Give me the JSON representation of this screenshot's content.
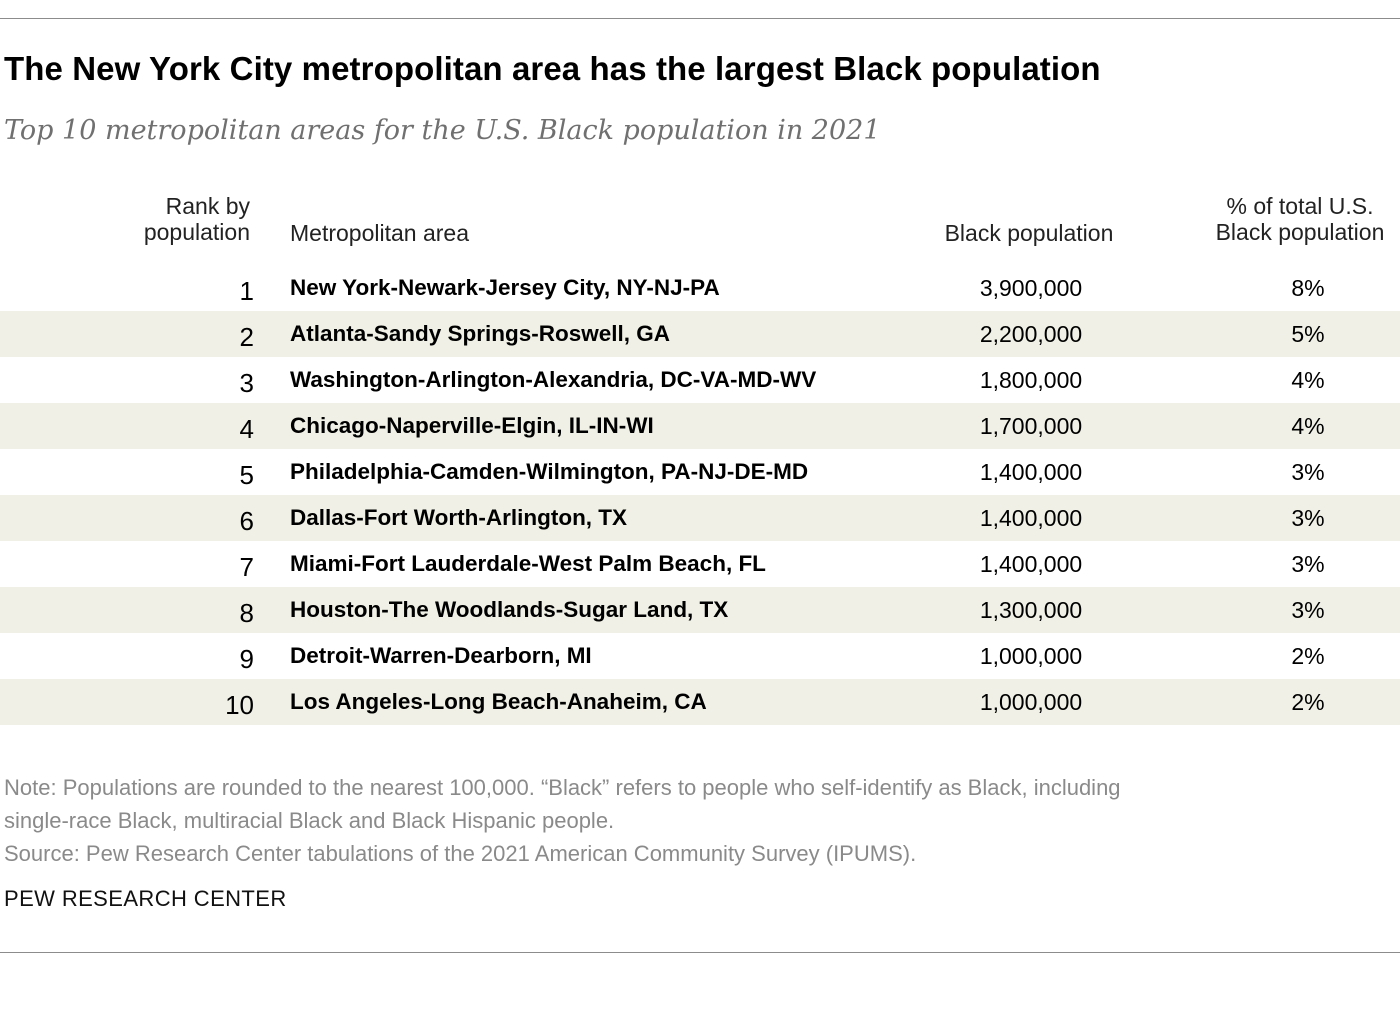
{
  "chart_data": {
    "type": "table",
    "title": "The New York City metropolitan area has the largest Black population",
    "subtitle": "Top 10 metropolitan areas for the U.S. Black population in 2021",
    "columns": {
      "rank_line1": "Rank by",
      "rank_line2": "population",
      "metro": "Metropolitan area",
      "pop": "Black population",
      "pct_line1": "% of total U.S.",
      "pct_line2": "Black population"
    },
    "rows": [
      {
        "rank": "1",
        "metro": "New York-Newark-Jersey City, NY-NJ-PA",
        "pop": "3,900,000",
        "pct": "8%"
      },
      {
        "rank": "2",
        "metro": "Atlanta-Sandy Springs-Roswell, GA",
        "pop": "2,200,000",
        "pct": "5%"
      },
      {
        "rank": "3",
        "metro": "Washington-Arlington-Alexandria, DC-VA-MD-WV",
        "pop": "1,800,000",
        "pct": "4%"
      },
      {
        "rank": "4",
        "metro": "Chicago-Naperville-Elgin, IL-IN-WI",
        "pop": "1,700,000",
        "pct": "4%"
      },
      {
        "rank": "5",
        "metro": "Philadelphia-Camden-Wilmington, PA-NJ-DE-MD",
        "pop": "1,400,000",
        "pct": "3%"
      },
      {
        "rank": "6",
        "metro": "Dallas-Fort Worth-Arlington, TX",
        "pop": "1,400,000",
        "pct": "3%"
      },
      {
        "rank": "7",
        "metro": "Miami-Fort Lauderdale-West Palm Beach, FL",
        "pop": "1,400,000",
        "pct": "3%"
      },
      {
        "rank": "8",
        "metro": "Houston-The Woodlands-Sugar Land, TX",
        "pop": "1,300,000",
        "pct": "3%"
      },
      {
        "rank": "9",
        "metro": "Detroit-Warren-Dearborn, MI",
        "pop": "1,000,000",
        "pct": "2%"
      },
      {
        "rank": "10",
        "metro": "Los Angeles-Long Beach-Anaheim, CA",
        "pop": "1,000,000",
        "pct": "2%"
      }
    ],
    "note_line1": "Note: Populations are rounded to the nearest 100,000. “Black” refers to people who self-identify as Black, including",
    "note_line2": "single-race Black, multiracial Black and Black Hispanic people.",
    "source": "Source: Pew Research Center tabulations of the 2021 American Community Survey (IPUMS).",
    "brand": "PEW RESEARCH CENTER"
  },
  "colors": {
    "row_shade": "#f0f0e6",
    "subtitle": "#707070",
    "note": "#8a8a8a",
    "rule": "#8c8c8c"
  }
}
